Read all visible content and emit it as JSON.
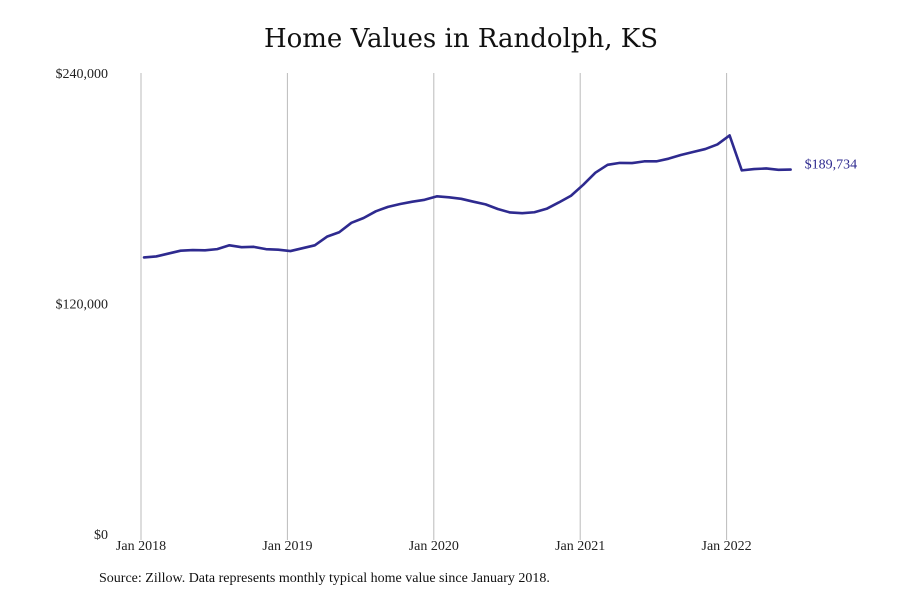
{
  "chart_data": {
    "type": "line",
    "title": "Home Values in Randolph, KS",
    "ylim": [
      0,
      240000
    ],
    "y_ticks": [
      0,
      120000,
      240000
    ],
    "y_tick_labels": [
      "$0",
      "$120,000",
      "$240,000"
    ],
    "x_ticks": [
      "2018-01",
      "2019-01",
      "2020-01",
      "2021-01",
      "2022-01"
    ],
    "x_tick_labels": [
      "Jan 2018",
      "Jan 2019",
      "Jan 2020",
      "Jan 2021",
      "Jan 2022"
    ],
    "grid": "vertical",
    "colors": {
      "line": "#2e2a8f",
      "grid": "#bbbbbb"
    },
    "end_label": "$189,734",
    "series": [
      {
        "x": [
          "2018-01",
          "2018-02",
          "2018-03",
          "2018-04",
          "2018-05",
          "2018-06",
          "2018-07",
          "2018-08",
          "2018-09",
          "2018-10",
          "2018-11",
          "2018-12",
          "2019-01",
          "2019-02",
          "2019-03",
          "2019-04",
          "2019-05",
          "2019-06",
          "2019-07",
          "2019-08",
          "2019-09",
          "2019-10",
          "2019-11",
          "2019-12",
          "2020-01",
          "2020-02",
          "2020-03",
          "2020-04",
          "2020-05",
          "2020-06",
          "2020-07",
          "2020-08",
          "2020-09",
          "2020-10",
          "2020-11",
          "2020-12",
          "2021-01",
          "2021-02",
          "2021-03",
          "2021-04",
          "2021-05",
          "2021-06",
          "2021-07",
          "2021-08",
          "2021-09",
          "2021-10",
          "2021-11",
          "2021-12",
          "2022-01",
          "2022-02",
          "2022-03",
          "2022-04",
          "2022-05",
          "2022-06"
        ],
        "values": [
          144000,
          144500,
          146000,
          147500,
          147800,
          147700,
          148300,
          150300,
          149300,
          149500,
          148300,
          148000,
          147300,
          148800,
          150300,
          154800,
          157100,
          162000,
          164500,
          168000,
          170300,
          171800,
          173000,
          174000,
          175800,
          175300,
          174500,
          173000,
          171600,
          169200,
          167400,
          167000,
          167500,
          169300,
          172600,
          176100,
          181800,
          188100,
          192200,
          193200,
          193100,
          194000,
          194000,
          195400,
          197300,
          198900,
          200400,
          202800,
          207500,
          189300,
          190000,
          190300,
          189600,
          189734
        ]
      }
    ]
  },
  "source_note": "Source: Zillow. Data represents monthly typical home value since January 2018."
}
